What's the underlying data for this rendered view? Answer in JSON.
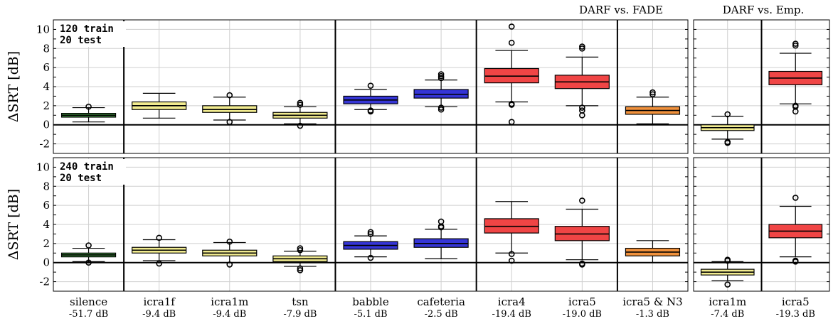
{
  "headers": {
    "left": "DARF vs. FADE",
    "right": "DARF vs. Emp."
  },
  "colors": {
    "silence": "#3c8c3c",
    "icra1f": "#f2ec90",
    "icra1m": "#f2ec90",
    "tsn": "#f2ec90",
    "babble": "#3535d6",
    "cafeteria": "#3535d6",
    "icra4": "#f04545",
    "icra5": "#f04545",
    "icra5 & N3": "#f0913c"
  },
  "chart_data": {
    "type": "box",
    "ylabel": "ΔSRT [dB]",
    "ylim": [
      -3,
      11
    ],
    "yticks": [
      -2,
      0,
      2,
      4,
      6,
      8,
      10
    ],
    "grid": true,
    "groups": [
      {
        "panel": "left",
        "categories": [
          "silence"
        ]
      },
      {
        "panel": "left",
        "categories": [
          "icra1f",
          "icra1m",
          "tsn"
        ]
      },
      {
        "panel": "left",
        "categories": [
          "babble",
          "cafeteria"
        ]
      },
      {
        "panel": "left",
        "categories": [
          "icra4",
          "icra5"
        ]
      },
      {
        "panel": "left",
        "categories": [
          "icra5 & N3"
        ]
      },
      {
        "panel": "right",
        "categories": [
          "icra1m"
        ]
      },
      {
        "panel": "right",
        "categories": [
          "icra5"
        ]
      }
    ],
    "categories_left": [
      {
        "name": "silence",
        "snr": "-51.7 dB"
      },
      {
        "name": "icra1f",
        "snr": "-9.4 dB"
      },
      {
        "name": "icra1m",
        "snr": "-9.4 dB"
      },
      {
        "name": "tsn",
        "snr": "-7.9 dB"
      },
      {
        "name": "babble",
        "snr": "-5.1 dB"
      },
      {
        "name": "cafeteria",
        "snr": "-2.5 dB"
      },
      {
        "name": "icra4",
        "snr": "-19.4 dB"
      },
      {
        "name": "icra5",
        "snr": "-19.0 dB"
      },
      {
        "name": "icra5 & N3",
        "snr": "-1.3 dB"
      }
    ],
    "categories_right": [
      {
        "name": "icra1m",
        "snr": "-7.4 dB"
      },
      {
        "name": "icra5",
        "snr": "-19.3 dB"
      }
    ],
    "rows": [
      {
        "annotation": [
          "120 train",
          " 20 test"
        ],
        "left": [
          {
            "name": "silence",
            "q1": 0.8,
            "median": 1.0,
            "q3": 1.2,
            "whisker_low": 0.3,
            "whisker_high": 1.8,
            "outliers": [
              1.9
            ]
          },
          {
            "name": "icra1f",
            "q1": 1.6,
            "median": 2.0,
            "q3": 2.4,
            "whisker_low": 0.7,
            "whisker_high": 3.3,
            "outliers": []
          },
          {
            "name": "icra1m",
            "q1": 1.3,
            "median": 1.6,
            "q3": 2.0,
            "whisker_low": 0.5,
            "whisker_high": 2.9,
            "outliers": [
              0.3,
              3.1
            ]
          },
          {
            "name": "tsn",
            "q1": 0.7,
            "median": 1.0,
            "q3": 1.3,
            "whisker_low": 0.1,
            "whisker_high": 1.9,
            "outliers": [
              -0.1,
              2.1,
              2.3
            ]
          },
          {
            "name": "babble",
            "q1": 2.2,
            "median": 2.6,
            "q3": 3.0,
            "whisker_low": 1.6,
            "whisker_high": 3.7,
            "outliers": [
              1.4,
              1.5,
              4.1
            ]
          },
          {
            "name": "cafeteria",
            "q1": 2.8,
            "median": 3.2,
            "q3": 3.7,
            "whisker_low": 1.9,
            "whisker_high": 4.7,
            "outliers": [
              1.6,
              1.8,
              4.9,
              5.1,
              5.3
            ]
          },
          {
            "name": "icra4",
            "q1": 4.4,
            "median": 5.1,
            "q3": 5.9,
            "whisker_low": 2.4,
            "whisker_high": 7.8,
            "outliers": [
              0.3,
              2.1,
              2.2,
              8.6,
              10.3
            ]
          },
          {
            "name": "icra5",
            "q1": 3.8,
            "median": 4.5,
            "q3": 5.2,
            "whisker_low": 2.0,
            "whisker_high": 7.1,
            "outliers": [
              1.0,
              1.5,
              1.8,
              8.0,
              8.2
            ]
          },
          {
            "name": "icra5 & N3",
            "q1": 1.1,
            "median": 1.5,
            "q3": 1.9,
            "whisker_low": 0.1,
            "whisker_high": 2.9,
            "outliers": [
              3.2,
              3.4
            ]
          }
        ],
        "right": [
          {
            "name": "icra1m",
            "q1": -0.6,
            "median": -0.3,
            "q3": 0.0,
            "whisker_low": -1.5,
            "whisker_high": 0.9,
            "outliers": [
              -1.8,
              -1.9,
              1.1
            ]
          },
          {
            "name": "icra5",
            "q1": 4.2,
            "median": 4.9,
            "q3": 5.6,
            "whisker_low": 2.2,
            "whisker_high": 7.5,
            "outliers": [
              1.4,
              1.9,
              2.0,
              8.3,
              8.5
            ]
          }
        ]
      },
      {
        "annotation": [
          "240 train",
          " 20 test"
        ],
        "left": [
          {
            "name": "silence",
            "q1": 0.6,
            "median": 0.8,
            "q3": 1.0,
            "whisker_low": 0.1,
            "whisker_high": 1.5,
            "outliers": [
              0.0,
              1.8
            ]
          },
          {
            "name": "icra1f",
            "q1": 1.0,
            "median": 1.3,
            "q3": 1.6,
            "whisker_low": 0.2,
            "whisker_high": 2.4,
            "outliers": [
              -0.1,
              2.6
            ]
          },
          {
            "name": "icra1m",
            "q1": 0.7,
            "median": 1.0,
            "q3": 1.3,
            "whisker_low": 0.0,
            "whisker_high": 2.1,
            "outliers": [
              -0.2,
              2.2
            ]
          },
          {
            "name": "tsn",
            "q1": 0.1,
            "median": 0.4,
            "q3": 0.7,
            "whisker_low": -0.4,
            "whisker_high": 1.2,
            "outliers": [
              -0.8,
              -0.6,
              1.3,
              1.5
            ]
          },
          {
            "name": "babble",
            "q1": 1.4,
            "median": 1.8,
            "q3": 2.2,
            "whisker_low": 0.6,
            "whisker_high": 2.8,
            "outliers": [
              0.5,
              3.0,
              3.2
            ]
          },
          {
            "name": "cafeteria",
            "q1": 1.6,
            "median": 2.0,
            "q3": 2.5,
            "whisker_low": 0.4,
            "whisker_high": 3.5,
            "outliers": [
              3.7,
              3.8,
              4.3
            ]
          },
          {
            "name": "icra4",
            "q1": 3.1,
            "median": 3.8,
            "q3": 4.6,
            "whisker_low": 1.0,
            "whisker_high": 6.4,
            "outliers": [
              0.2,
              0.9
            ]
          },
          {
            "name": "icra5",
            "q1": 2.3,
            "median": 3.0,
            "q3": 3.8,
            "whisker_low": 0.3,
            "whisker_high": 5.6,
            "outliers": [
              -0.2,
              -0.1,
              6.5
            ]
          },
          {
            "name": "icra5 & N3",
            "q1": 0.7,
            "median": 1.1,
            "q3": 1.5,
            "whisker_low": 0.0,
            "whisker_high": 2.3,
            "outliers": []
          }
        ],
        "right": [
          {
            "name": "icra1m",
            "q1": -1.3,
            "median": -1.0,
            "q3": -0.7,
            "whisker_low": -1.9,
            "whisker_high": 0.1,
            "outliers": [
              -2.3,
              0.2,
              0.3
            ]
          },
          {
            "name": "icra5",
            "q1": 2.6,
            "median": 3.3,
            "q3": 4.0,
            "whisker_low": 0.6,
            "whisker_high": 5.9,
            "outliers": [
              0.1,
              0.2,
              6.8
            ]
          }
        ]
      }
    ]
  }
}
